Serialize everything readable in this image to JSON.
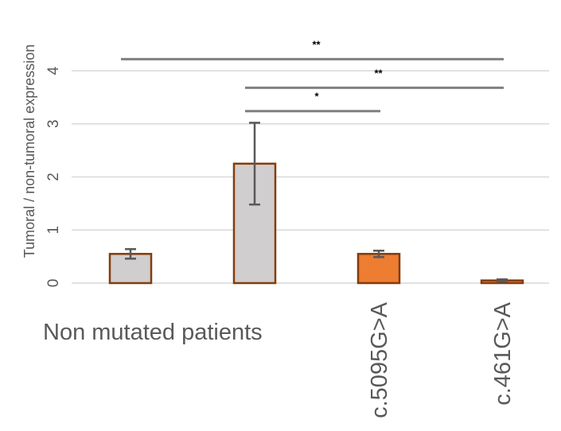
{
  "chart_data": {
    "type": "bar",
    "title": "",
    "xlabel": "",
    "ylabel": "Tumoral / non-tumoral expression",
    "ylim": [
      0,
      4.5
    ],
    "yticks": [
      0,
      1,
      2,
      3,
      4
    ],
    "grid": true,
    "categories": [
      "Non mutated patients",
      "",
      "c.5095G>A",
      "c.461G>A"
    ],
    "values": [
      0.55,
      2.25,
      0.55,
      0.05
    ],
    "error": [
      0.09,
      0.77,
      0.06,
      0.02
    ],
    "colors": [
      "#d0cece",
      "#d0cece",
      "#ed7d31",
      "#ed7d31"
    ],
    "edge_color": "#843c0c",
    "significance": [
      {
        "from": 0,
        "to": 3,
        "y": 4.22,
        "label": "**"
      },
      {
        "from": 1,
        "to": 3,
        "y": 3.68,
        "label": "**"
      },
      {
        "from": 1,
        "to": 2,
        "y": 3.24,
        "label": "*"
      }
    ]
  }
}
